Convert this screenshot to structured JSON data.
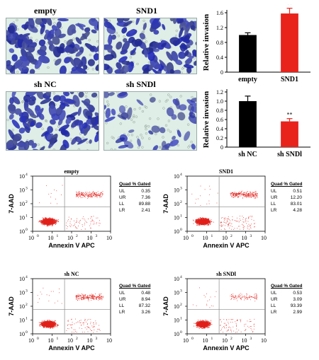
{
  "micrographs": [
    {
      "label": "empty",
      "density": "high"
    },
    {
      "label": "SND1",
      "density": "high"
    },
    {
      "label": "sh NC",
      "density": "high"
    },
    {
      "label": "sh SNDl",
      "density": "low"
    }
  ],
  "chart_data": [
    {
      "type": "bar",
      "categories": [
        "empty",
        "SND1"
      ],
      "values": [
        1.0,
        1.58
      ],
      "errors": [
        0.06,
        0.14
      ],
      "colors": [
        "#000000",
        "#e8231c"
      ],
      "significance": [
        "",
        "**"
      ],
      "ylabel": "Relative invasion",
      "ylim": [
        0,
        1.6
      ],
      "yticks": [
        "0",
        "0.4",
        "0.8",
        "1.2",
        "1.6"
      ],
      "ytick_values": [
        0,
        0.4,
        0.8,
        1.2,
        1.6
      ]
    },
    {
      "type": "bar",
      "categories": [
        "sh NC",
        "sh SNDl"
      ],
      "values": [
        1.0,
        0.56
      ],
      "errors": [
        0.11,
        0.06
      ],
      "colors": [
        "#000000",
        "#e8231c"
      ],
      "significance": [
        "",
        "**"
      ],
      "ylabel": "Relative invasion",
      "ylim": [
        0,
        1.2
      ],
      "yticks": [
        "0",
        "0.2",
        "0.4",
        "0.6",
        "0.8",
        "1.0",
        "1.2"
      ],
      "ytick_values": [
        0,
        0.2,
        0.4,
        0.6,
        0.8,
        1.0,
        1.2
      ]
    },
    {
      "type": "scatter",
      "title": "empty",
      "xlabel": "Annexin V APC",
      "ylabel": "7-AAD",
      "quad_title": "Quad % Gated",
      "quadrants": [
        {
          "name": "UL",
          "value": "0.35"
        },
        {
          "name": "UR",
          "value": "7.36"
        },
        {
          "name": "LL",
          "value": "89.88"
        },
        {
          "name": "LR",
          "value": "2.41"
        }
      ]
    },
    {
      "type": "scatter",
      "title": "SND1",
      "xlabel": "Annexin V APC",
      "ylabel": "7-AAD",
      "quad_title": "Quad % Gated",
      "quadrants": [
        {
          "name": "UL",
          "value": "0.51"
        },
        {
          "name": "UR",
          "value": "12.20"
        },
        {
          "name": "LL",
          "value": "83.01"
        },
        {
          "name": "LR",
          "value": "4.28"
        }
      ]
    },
    {
      "type": "scatter",
      "title": "sh NC",
      "xlabel": "Annexin V APC",
      "ylabel": "7-AAD",
      "quad_title": "Quad % Gated",
      "quadrants": [
        {
          "name": "UL",
          "value": "0.48"
        },
        {
          "name": "UR",
          "value": "8.94"
        },
        {
          "name": "LL",
          "value": "87.32"
        },
        {
          "name": "LR",
          "value": "3.26"
        }
      ]
    },
    {
      "type": "scatter",
      "title": "sh SNDl",
      "xlabel": "Annexin V APC",
      "ylabel": "7-AAD",
      "quad_title": "Quad % Gated",
      "quadrants": [
        {
          "name": "UL",
          "value": "0.53"
        },
        {
          "name": "UR",
          "value": "3.09"
        },
        {
          "name": "LL",
          "value": "93.39"
        },
        {
          "name": "LR",
          "value": "2.99"
        }
      ]
    }
  ],
  "flow_axis": {
    "x_ticks": [
      "10",
      "10",
      "10",
      "10",
      "10"
    ],
    "x_exps": [
      "0",
      "1",
      "2",
      "3",
      "4"
    ],
    "y_ticks": [
      "10",
      "10",
      "10",
      "10",
      "10"
    ],
    "y_exps": [
      "0",
      "1",
      "2",
      "3",
      "4"
    ]
  },
  "colors": {
    "stain": "#3b3fa8",
    "background": "#dfeee6",
    "dots": "#e0211b",
    "bar_control": "#000000",
    "bar_treated": "#e8231c"
  }
}
